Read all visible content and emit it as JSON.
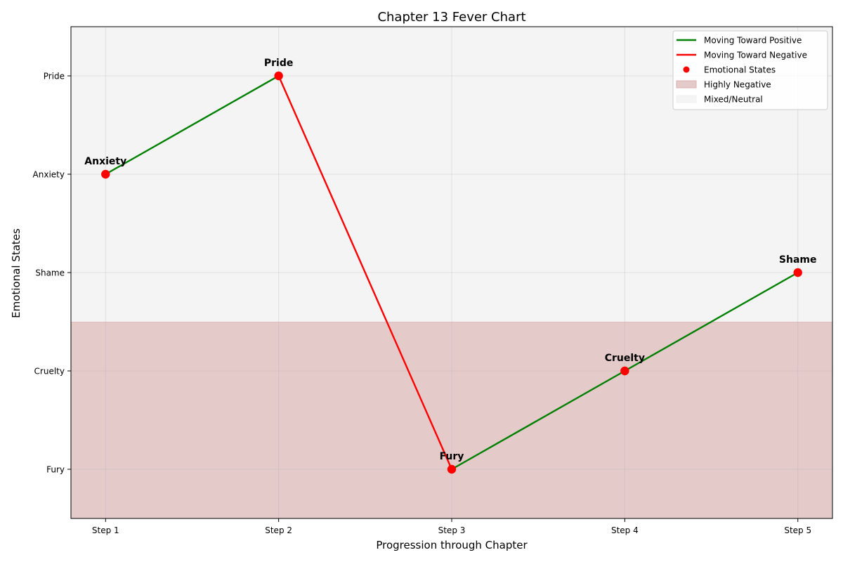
{
  "chart_data": {
    "type": "line",
    "title": "Chapter 13 Fever Chart",
    "xlabel": "Progression through Chapter",
    "ylabel": "Emotional States",
    "categories": [
      "Step 1",
      "Step 2",
      "Step 3",
      "Step 4",
      "Step 5"
    ],
    "y_levels": [
      "Fury",
      "Cruelty",
      "Shame",
      "Anxiety",
      "Pride"
    ],
    "points": [
      {
        "x": "Step 1",
        "y": 3,
        "label": "Anxiety"
      },
      {
        "x": "Step 2",
        "y": 4,
        "label": "Pride"
      },
      {
        "x": "Step 3",
        "y": 0,
        "label": "Fury"
      },
      {
        "x": "Step 4",
        "y": 1,
        "label": "Cruelty"
      },
      {
        "x": "Step 5",
        "y": 2,
        "label": "Shame"
      }
    ],
    "xlim": [
      -0.2,
      4.2
    ],
    "ylim": [
      -0.5,
      4.5
    ],
    "regions": [
      {
        "name": "Highly Negative",
        "y_from": -0.5,
        "y_to": 1.5,
        "color": "#e5caca"
      },
      {
        "name": "Mixed/Neutral",
        "y_from": 1.5,
        "y_to": 4.5,
        "color": "#f4f4f4"
      }
    ],
    "grid": true,
    "legend_position": "top-right",
    "legend": [
      {
        "label": "Moving Toward Positive",
        "kind": "line",
        "color": "#008000"
      },
      {
        "label": "Moving Toward Negative",
        "kind": "line",
        "color": "#ff0000"
      },
      {
        "label": "Emotional States",
        "kind": "marker",
        "color": "#ff0000"
      },
      {
        "label": "Highly Negative",
        "kind": "patch",
        "color": "#e5caca"
      },
      {
        "label": "Mixed/Neutral",
        "kind": "patch",
        "color": "#f4f4f4"
      }
    ],
    "colors": {
      "positive": "#008000",
      "negative": "#ff0000",
      "marker": "#ff0000"
    }
  }
}
